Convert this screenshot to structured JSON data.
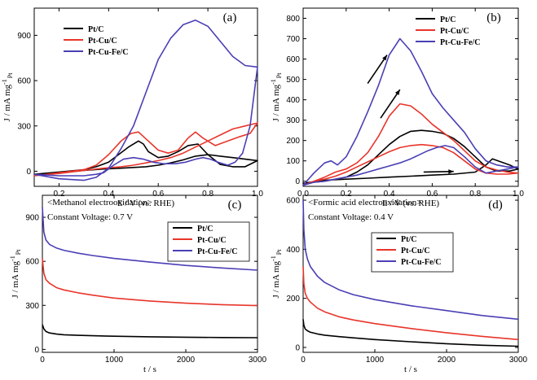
{
  "chart_data": [
    {
      "id": "a",
      "type": "line",
      "panel_label": "(a)",
      "xlabel": "E / V (vs. RHE)",
      "ylabel": "J / mA mg",
      "ylabel_sup": "-1",
      "ylabel_sub": "Pt",
      "xlim": [
        0.1,
        1.0
      ],
      "ylim": [
        -100,
        1080
      ],
      "xticks": [
        0.2,
        0.4,
        0.6,
        0.8,
        1.0
      ],
      "xtick_labels": [
        "0.2",
        "0.4",
        "0.6",
        "0.8",
        "1.0"
      ],
      "yticks": [
        0,
        300,
        600,
        900
      ],
      "ytick_labels": [
        "0",
        "300",
        "600",
        "900"
      ],
      "legend": [
        "Pt/C",
        "Pt-Cu/C",
        "Pt-Cu-Fe/C"
      ],
      "series": [
        {
          "name": "Pt/C",
          "color": "#000000",
          "x": [
            0.1,
            0.2,
            0.3,
            0.38,
            0.45,
            0.5,
            0.55,
            0.6,
            0.65,
            0.7,
            0.75,
            0.8,
            0.85,
            0.9,
            0.95,
            1.0,
            0.95,
            0.9,
            0.85,
            0.8,
            0.76,
            0.72,
            0.68,
            0.64,
            0.6,
            0.56,
            0.54,
            0.52,
            0.48,
            0.44,
            0.4,
            0.35,
            0.3,
            0.2,
            0.1
          ],
          "y": [
            -20,
            -10,
            5,
            15,
            20,
            25,
            30,
            40,
            55,
            75,
            100,
            110,
            100,
            90,
            80,
            70,
            30,
            30,
            45,
            110,
            180,
            170,
            130,
            100,
            90,
            130,
            180,
            200,
            160,
            110,
            60,
            30,
            10,
            -5,
            -20
          ]
        },
        {
          "name": "Pt-Cu/C",
          "color": "#e8352a",
          "x": [
            0.1,
            0.2,
            0.3,
            0.38,
            0.45,
            0.5,
            0.55,
            0.6,
            0.65,
            0.7,
            0.75,
            0.8,
            0.85,
            0.9,
            0.95,
            1.0,
            0.97,
            0.93,
            0.88,
            0.83,
            0.78,
            0.75,
            0.72,
            0.68,
            0.64,
            0.6,
            0.56,
            0.52,
            0.49,
            0.45,
            0.4,
            0.35,
            0.3,
            0.2,
            0.1
          ],
          "y": [
            -30,
            -15,
            5,
            20,
            30,
            40,
            55,
            70,
            90,
            120,
            160,
            200,
            240,
            280,
            300,
            320,
            250,
            230,
            200,
            170,
            220,
            260,
            220,
            140,
            120,
            140,
            200,
            260,
            250,
            200,
            110,
            40,
            10,
            -10,
            -30
          ]
        },
        {
          "name": "Pt-Cu-Fe/C",
          "color": "#4a3fb5",
          "x": [
            0.1,
            0.2,
            0.3,
            0.35,
            0.4,
            0.45,
            0.5,
            0.55,
            0.6,
            0.65,
            0.7,
            0.75,
            0.8,
            0.85,
            0.9,
            0.95,
            1.0,
            0.97,
            0.94,
            0.91,
            0.88,
            0.84,
            0.81,
            0.78,
            0.75,
            0.71,
            0.67,
            0.62,
            0.58,
            0.54,
            0.5,
            0.46,
            0.42,
            0.38,
            0.35,
            0.3,
            0.2,
            0.1
          ],
          "y": [
            -20,
            -50,
            -60,
            -40,
            20,
            150,
            300,
            520,
            740,
            880,
            970,
            1000,
            960,
            860,
            760,
            700,
            690,
            300,
            120,
            60,
            40,
            60,
            80,
            90,
            80,
            60,
            50,
            50,
            60,
            80,
            90,
            80,
            40,
            -10,
            -20,
            -30,
            -30,
            -20
          ]
        }
      ]
    },
    {
      "id": "b",
      "type": "line",
      "panel_label": "(b)",
      "xlabel": "E / V (vs. RHE)",
      "ylabel": "J / mA mg",
      "ylabel_sup": "-1",
      "ylabel_sub": "Pt",
      "xlim": [
        0.0,
        1.0
      ],
      "ylim": [
        -25,
        850
      ],
      "xticks": [
        0.0,
        0.2,
        0.4,
        0.6,
        0.8,
        1.0
      ],
      "xtick_labels": [
        "0.0",
        "0.2",
        "0.4",
        "0.6",
        "0.8",
        "1.0"
      ],
      "yticks": [
        0,
        100,
        200,
        300,
        400,
        500,
        600,
        700,
        800
      ],
      "ytick_labels": [
        "0",
        "100",
        "200",
        "300",
        "400",
        "500",
        "600",
        "700",
        "800"
      ],
      "legend": [
        "Pt/C",
        "Pt-Cu/C",
        "Pt-Cu-Fe/C"
      ],
      "series": [
        {
          "name": "Pt/C",
          "color": "#000000",
          "x": [
            0.0,
            0.1,
            0.2,
            0.3,
            0.4,
            0.5,
            0.6,
            0.7,
            0.8,
            0.85,
            0.88,
            0.92,
            0.96,
            1.0,
            0.96,
            0.9,
            0.85,
            0.8,
            0.75,
            0.7,
            0.65,
            0.6,
            0.55,
            0.5,
            0.45,
            0.4,
            0.35,
            0.3,
            0.25,
            0.2,
            0.1,
            0.0
          ],
          "y": [
            -10,
            5,
            10,
            15,
            20,
            25,
            30,
            35,
            45,
            80,
            110,
            95,
            80,
            60,
            50,
            50,
            70,
            120,
            170,
            210,
            235,
            245,
            250,
            245,
            220,
            180,
            130,
            80,
            45,
            20,
            0,
            -10
          ]
        },
        {
          "name": "Pt-Cu/C",
          "color": "#e8352a",
          "x": [
            0.0,
            0.05,
            0.1,
            0.15,
            0.2,
            0.25,
            0.3,
            0.35,
            0.4,
            0.45,
            0.5,
            0.55,
            0.6,
            0.65,
            0.7,
            0.75,
            0.8,
            0.85,
            0.9,
            0.95,
            1.0,
            0.95,
            0.9,
            0.85,
            0.8,
            0.75,
            0.7,
            0.65,
            0.6,
            0.55,
            0.5,
            0.45,
            0.4,
            0.35,
            0.3,
            0.25,
            0.2,
            0.15,
            0.1,
            0.05,
            0.0
          ],
          "y": [
            -20,
            0,
            20,
            45,
            60,
            90,
            140,
            220,
            320,
            380,
            370,
            330,
            280,
            240,
            200,
            150,
            100,
            70,
            55,
            45,
            40,
            35,
            35,
            40,
            60,
            100,
            140,
            165,
            175,
            180,
            175,
            165,
            145,
            120,
            95,
            70,
            45,
            25,
            10,
            0,
            -20
          ]
        },
        {
          "name": "Pt-Cu-Fe/C",
          "color": "#4a3fb5",
          "x": [
            0.0,
            0.05,
            0.1,
            0.13,
            0.16,
            0.2,
            0.25,
            0.3,
            0.35,
            0.4,
            0.45,
            0.5,
            0.55,
            0.6,
            0.65,
            0.7,
            0.75,
            0.8,
            0.85,
            0.9,
            0.95,
            1.0,
            0.95,
            0.9,
            0.85,
            0.8,
            0.75,
            0.7,
            0.66,
            0.62,
            0.58,
            0.54,
            0.5,
            0.45,
            0.4,
            0.35,
            0.3,
            0.25,
            0.2,
            0.15,
            0.1,
            0.05,
            0.0
          ],
          "y": [
            -20,
            40,
            90,
            100,
            80,
            120,
            220,
            340,
            470,
            620,
            700,
            640,
            540,
            430,
            360,
            300,
            240,
            160,
            100,
            80,
            70,
            70,
            60,
            50,
            40,
            70,
            120,
            165,
            175,
            165,
            150,
            130,
            110,
            90,
            75,
            60,
            45,
            30,
            20,
            10,
            0,
            -5,
            -20
          ]
        }
      ],
      "arrows": [
        {
          "from": [
            0.3,
            480
          ],
          "to": [
            0.39,
            620
          ]
        },
        {
          "from": [
            0.36,
            310
          ],
          "to": [
            0.45,
            450
          ]
        },
        {
          "from": [
            0.56,
            45
          ],
          "to": [
            0.7,
            48
          ]
        }
      ]
    },
    {
      "id": "c",
      "type": "line",
      "panel_label": "(c)",
      "annotation_title": "<Methanol electrooxidation>",
      "annotation_sub": "Constant Voltage: 0.7 V",
      "xlabel": "t / s",
      "ylabel": "J / mA mg",
      "ylabel_sup": "-1",
      "ylabel_sub": "Pt",
      "xlim": [
        0,
        3000
      ],
      "ylim": [
        -20,
        1050
      ],
      "xticks": [
        0,
        1000,
        2000,
        3000
      ],
      "xtick_labels": [
        "0",
        "1000",
        "2000",
        "3000"
      ],
      "yticks": [
        0,
        300,
        600,
        900
      ],
      "ytick_labels": [
        "0",
        "300",
        "600",
        "900"
      ],
      "legend": [
        "Pt/C",
        "Pt-Cu/C",
        "Pt-Cu-Fe/C"
      ],
      "series": [
        {
          "name": "Pt/C",
          "color": "#000000",
          "x": [
            0,
            20,
            50,
            100,
            200,
            300,
            500,
            700,
            1000,
            1500,
            2000,
            2500,
            3000
          ],
          "y": [
            170,
            140,
            122,
            112,
            104,
            100,
            96,
            93,
            90,
            86,
            83,
            81,
            80
          ]
        },
        {
          "name": "Pt-Cu/C",
          "color": "#e8352a",
          "x": [
            0,
            20,
            50,
            100,
            200,
            300,
            500,
            700,
            1000,
            1500,
            2000,
            2500,
            3000
          ],
          "y": [
            620,
            520,
            475,
            450,
            420,
            405,
            385,
            370,
            350,
            330,
            315,
            305,
            298
          ]
        },
        {
          "name": "Pt-Cu-Fe/C",
          "color": "#4a3fb5",
          "x": [
            0,
            20,
            50,
            100,
            200,
            300,
            500,
            700,
            1000,
            1500,
            2000,
            2500,
            3000
          ],
          "y": [
            970,
            800,
            745,
            715,
            690,
            675,
            655,
            640,
            620,
            595,
            572,
            555,
            540
          ]
        }
      ]
    },
    {
      "id": "d",
      "type": "line",
      "panel_label": "(d)",
      "annotation_title": "<Formic acid electrooxidation>",
      "annotation_sub": "Constant Voltage: 0.4 V",
      "xlabel": "t / s",
      "ylabel": "J / mA mg",
      "ylabel_sup": "-1",
      "ylabel_sub": "Pt",
      "xlim": [
        0,
        3000
      ],
      "ylim": [
        -20,
        620
      ],
      "xticks": [
        0,
        1000,
        2000,
        3000
      ],
      "xtick_labels": [
        "0",
        "1000",
        "2000",
        "3000"
      ],
      "yticks": [
        0,
        200,
        400,
        600
      ],
      "ytick_labels": [
        "0",
        "200",
        "400",
        "600"
      ],
      "legend": [
        "Pt/C",
        "Pt-Cu/C",
        "Pt-Cu-Fe/C"
      ],
      "series": [
        {
          "name": "Pt/C",
          "color": "#000000",
          "x": [
            0,
            10,
            30,
            60,
            100,
            200,
            300,
            500,
            700,
            1000,
            1500,
            2000,
            2500,
            3000
          ],
          "y": [
            115,
            90,
            75,
            68,
            62,
            55,
            50,
            44,
            39,
            32,
            23,
            15,
            9,
            5
          ]
        },
        {
          "name": "Pt-Cu/C",
          "color": "#e8352a",
          "x": [
            0,
            10,
            30,
            60,
            100,
            200,
            300,
            500,
            700,
            1000,
            1500,
            2000,
            2500,
            3000
          ],
          "y": [
            330,
            260,
            220,
            200,
            185,
            160,
            145,
            125,
            112,
            97,
            77,
            60,
            45,
            32
          ]
        },
        {
          "name": "Pt-Cu-Fe/C",
          "color": "#4a3fb5",
          "x": [
            0,
            10,
            30,
            60,
            100,
            200,
            300,
            500,
            700,
            1000,
            1500,
            2000,
            2500,
            3000
          ],
          "y": [
            600,
            480,
            400,
            360,
            330,
            290,
            265,
            235,
            215,
            195,
            170,
            150,
            130,
            115
          ]
        }
      ]
    }
  ]
}
